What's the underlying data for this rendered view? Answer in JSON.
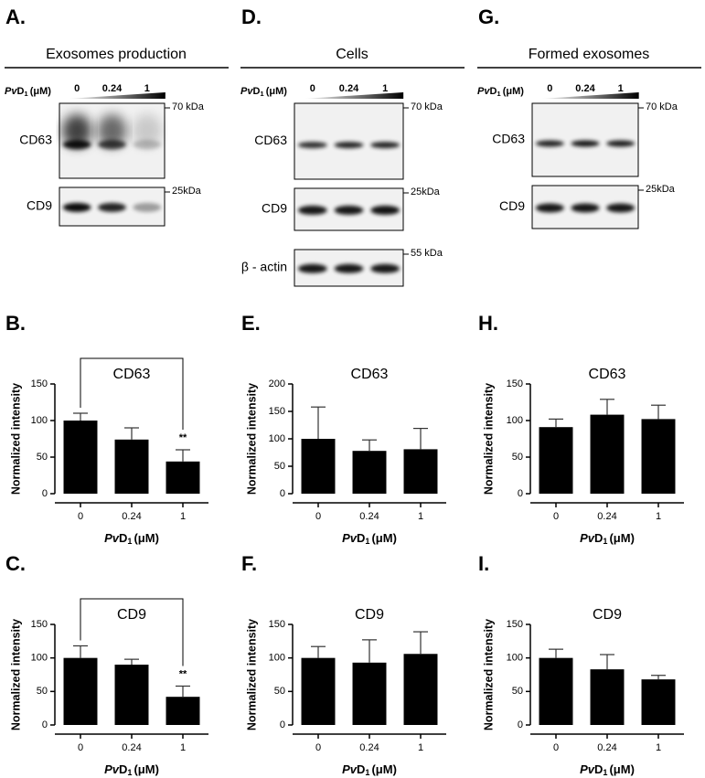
{
  "blots": [
    {
      "letter": "A.",
      "title": "Exosomes production",
      "pvd": [
        "Pv",
        "D",
        "1",
        "(μM)"
      ],
      "concentrations": [
        "0",
        "0.24",
        "1"
      ],
      "rows": [
        {
          "label": "CD63",
          "marker": "70 kDa"
        },
        {
          "label": "CD9",
          "marker": "25kDa"
        }
      ]
    },
    {
      "letter": "D.",
      "title": "Cells",
      "pvd": [
        "Pv",
        "D",
        "1",
        "(μM)"
      ],
      "concentrations": [
        "0",
        "0.24",
        "1"
      ],
      "rows": [
        {
          "label": "CD63",
          "marker": "70 kDa"
        },
        {
          "label": "CD9",
          "marker": "25kDa"
        },
        {
          "label": "β - actin",
          "marker": "55 kDa"
        }
      ]
    },
    {
      "letter": "G.",
      "title": "Formed exosomes",
      "pvd": [
        "Pv",
        "D",
        "1",
        "(μM)"
      ],
      "concentrations": [
        "0",
        "0.24",
        "1"
      ],
      "rows": [
        {
          "label": "CD63",
          "marker": "70 kDa"
        },
        {
          "label": "CD9",
          "marker": "25kDa"
        }
      ]
    }
  ],
  "chart_data": [
    {
      "type": "bar",
      "letter": "B.",
      "title": "CD63",
      "ylabel": "Normalized intensity",
      "xlabel": [
        "Pv",
        "D",
        "1",
        "(μM)"
      ],
      "categories": [
        "0",
        "0.24",
        "1"
      ],
      "values": [
        100,
        74,
        44
      ],
      "errors": [
        10,
        16,
        16
      ],
      "annotation": "**",
      "color": "#000000",
      "ylim": [
        0,
        150
      ],
      "yticks": [
        0,
        50,
        100,
        150
      ]
    },
    {
      "type": "bar",
      "letter": "E.",
      "title": "CD63",
      "ylabel": "Normalized intensity",
      "xlabel": [
        "Pv",
        "D",
        "1",
        "(μM)"
      ],
      "categories": [
        "0",
        "0.24",
        "1"
      ],
      "values": [
        100,
        78,
        81
      ],
      "errors": [
        58,
        20,
        38
      ],
      "color": "#000000",
      "ylim": [
        0,
        200
      ],
      "yticks": [
        0,
        50,
        100,
        150,
        200
      ]
    },
    {
      "type": "bar",
      "letter": "H.",
      "title": "CD63",
      "ylabel": "Normalized intensity",
      "xlabel": [
        "Pv",
        "D",
        "1",
        "(μM)"
      ],
      "categories": [
        "0",
        "0.24",
        "1"
      ],
      "values": [
        91,
        108,
        102
      ],
      "errors": [
        11,
        21,
        19
      ],
      "color": "#000000",
      "ylim": [
        0,
        150
      ],
      "yticks": [
        0,
        50,
        100,
        150
      ]
    },
    {
      "type": "bar",
      "letter": "C.",
      "title": "CD9",
      "ylabel": "Normalized intensity",
      "xlabel": [
        "Pv",
        "D",
        "1",
        "(μM)"
      ],
      "categories": [
        "0",
        "0.24",
        "1"
      ],
      "values": [
        100,
        90,
        42
      ],
      "errors": [
        18,
        8,
        16
      ],
      "annotation": "**",
      "color": "#000000",
      "ylim": [
        0,
        150
      ],
      "yticks": [
        0,
        50,
        100,
        150
      ]
    },
    {
      "type": "bar",
      "letter": "F.",
      "title": "CD9",
      "ylabel": "Normalized intensity",
      "xlabel": [
        "Pv",
        "D",
        "1",
        "(μM)"
      ],
      "categories": [
        "0",
        "0.24",
        "1"
      ],
      "values": [
        100,
        93,
        106
      ],
      "errors": [
        17,
        34,
        33
      ],
      "color": "#000000",
      "ylim": [
        0,
        150
      ],
      "yticks": [
        0,
        50,
        100,
        150
      ]
    },
    {
      "type": "bar",
      "letter": "I.",
      "title": "CD9",
      "ylabel": "Normalized intensity",
      "xlabel": [
        "Pv",
        "D",
        "1",
        "(μM)"
      ],
      "categories": [
        "0",
        "0.24",
        "1"
      ],
      "values": [
        100,
        83,
        68
      ],
      "errors": [
        13,
        22,
        6
      ],
      "color": "#000000",
      "ylim": [
        0,
        150
      ],
      "yticks": [
        0,
        50,
        100,
        150
      ]
    }
  ]
}
